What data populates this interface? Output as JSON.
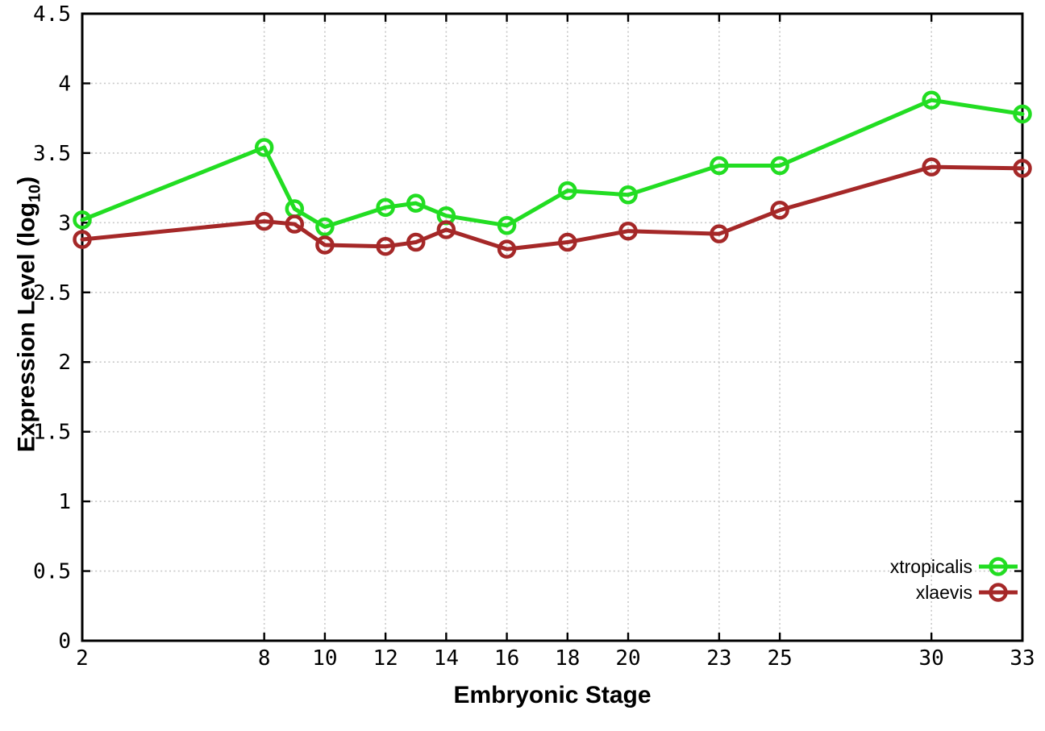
{
  "figure": {
    "xlabel": "Embryonic Stage",
    "ylabel_prefix": "Expression Level (log",
    "ylabel_sub": "10",
    "ylabel_suffix": ")"
  },
  "colors": {
    "xtropicalis": "#22dd22",
    "xlaevis": "#a52828",
    "grid": "#c8c8c8",
    "axis": "#000000"
  },
  "chart_data": {
    "type": "line",
    "title": "",
    "xlabel": "Embryonic Stage",
    "ylabel": "Expression Level (log10)",
    "x": [
      2,
      8,
      9,
      10,
      12,
      13,
      14,
      16,
      18,
      20,
      23,
      25,
      30,
      33
    ],
    "series": [
      {
        "name": "xtropicalis",
        "color": "#22dd22",
        "values": [
          3.02,
          3.54,
          3.1,
          2.97,
          3.11,
          3.14,
          3.05,
          2.98,
          3.23,
          3.2,
          3.41,
          3.41,
          3.88,
          3.78
        ]
      },
      {
        "name": "xlaevis",
        "color": "#a52828",
        "values": [
          2.88,
          3.01,
          2.99,
          2.84,
          2.83,
          2.86,
          2.95,
          2.81,
          2.86,
          2.94,
          2.92,
          3.09,
          3.4,
          3.39
        ]
      }
    ],
    "xticks": [
      2,
      8,
      10,
      12,
      14,
      16,
      18,
      20,
      23,
      25,
      30,
      33
    ],
    "yticks": [
      0,
      0.5,
      1,
      1.5,
      2,
      2.5,
      3,
      3.5,
      4,
      4.5
    ],
    "xlim": [
      2,
      33
    ],
    "ylim": [
      0,
      4.5
    ],
    "grid": true,
    "legend_position": "bottom-right",
    "legend": [
      "xtropicalis",
      "xlaevis"
    ]
  }
}
